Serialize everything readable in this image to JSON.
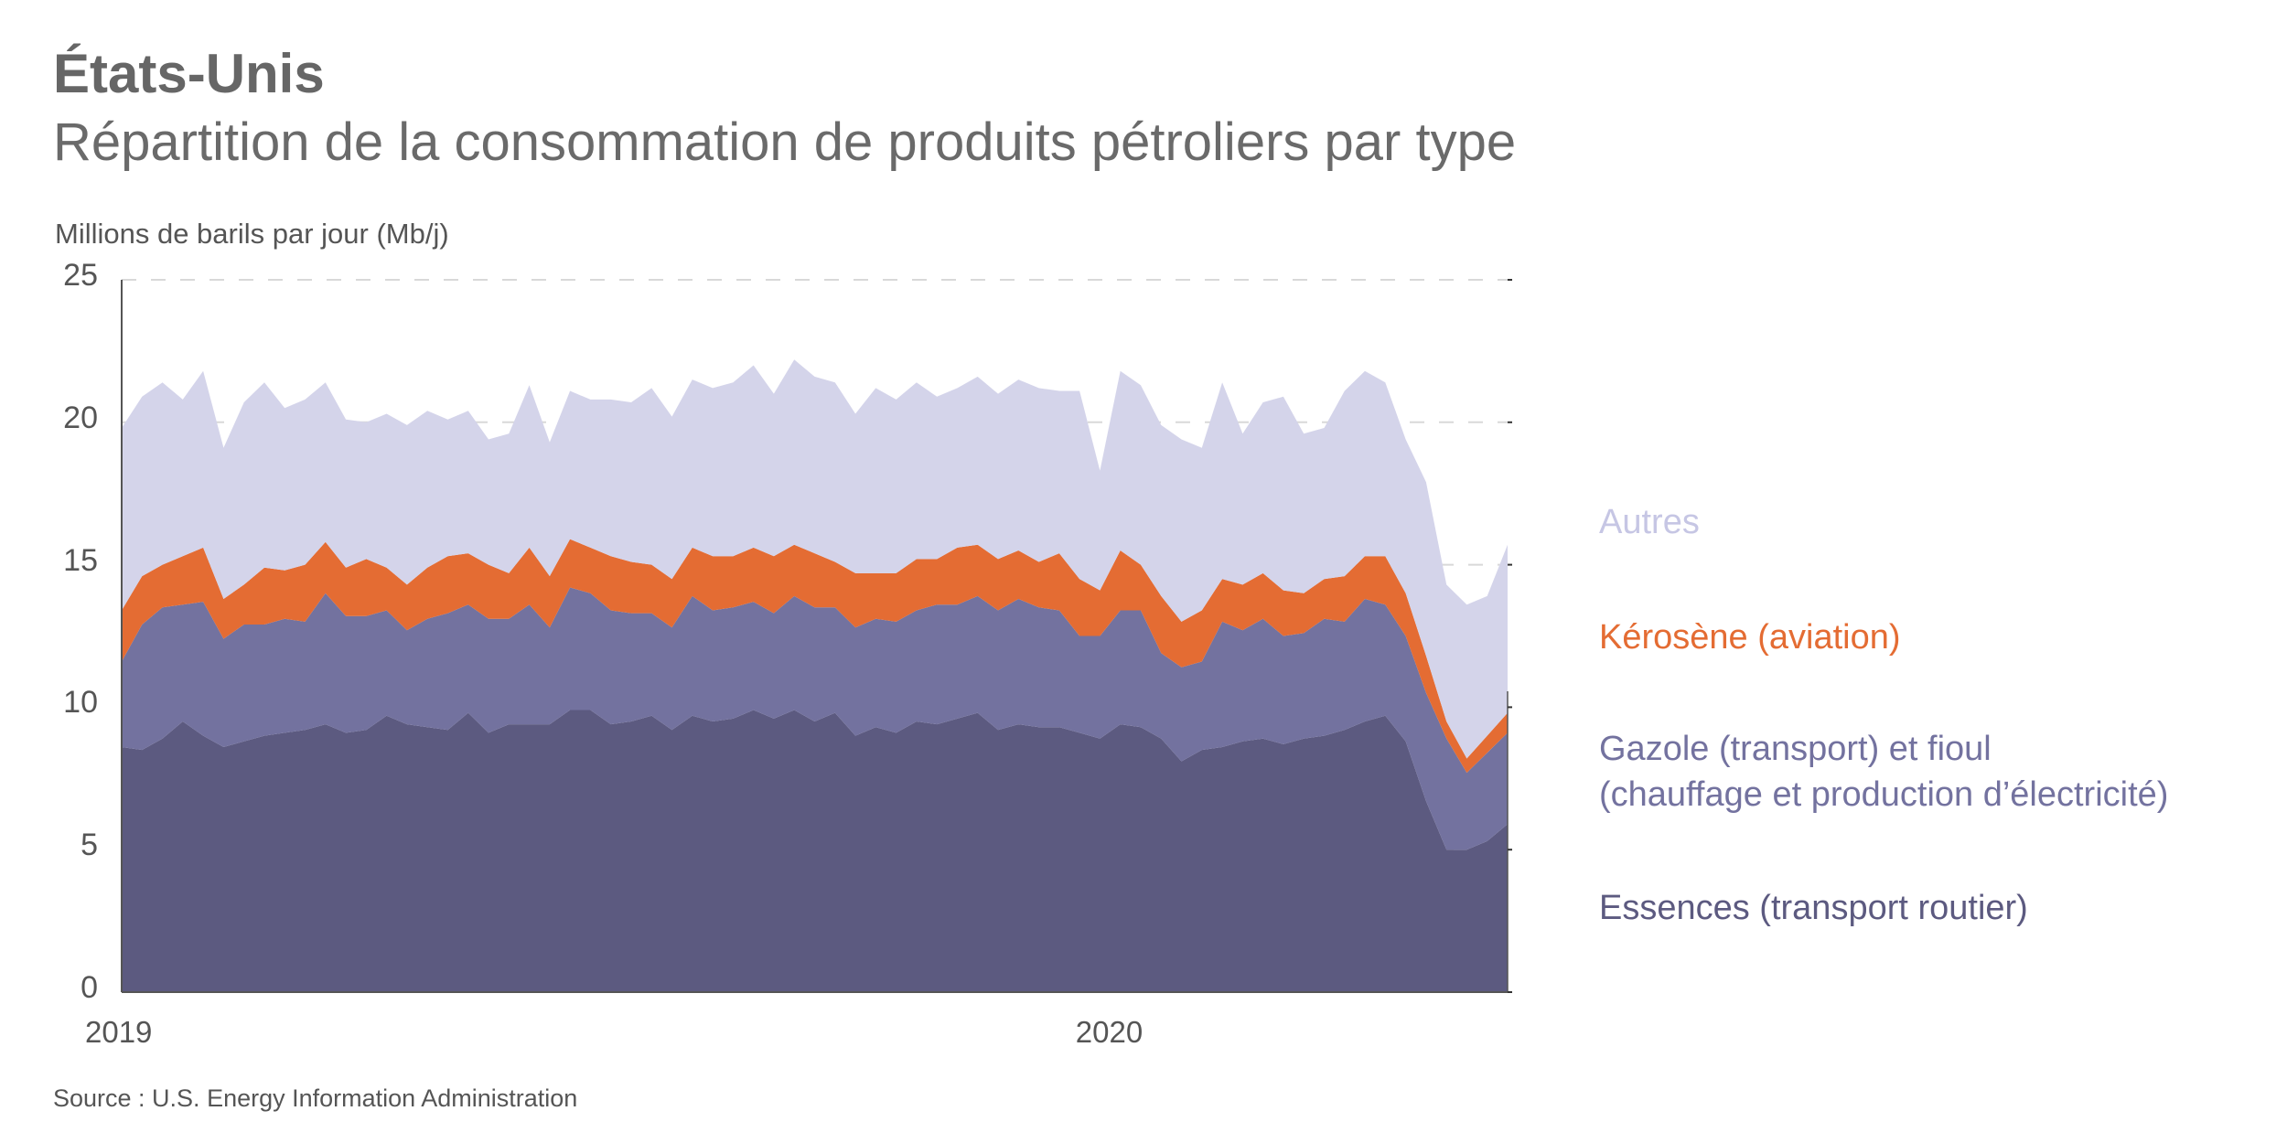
{
  "header": {
    "title": "États-Unis",
    "subtitle": "Répartition de la consommation de produits pétroliers par type"
  },
  "source": "Source : U.S. Energy Information Administration",
  "chart_data": {
    "type": "area",
    "stacked": true,
    "title": "Répartition de la consommation de produits pétroliers par type",
    "ylabel": "Millions de barils par jour (Mb/j)",
    "xlabel": "",
    "ylim": [
      0,
      25
    ],
    "yticks": [
      "0",
      "5",
      "10",
      "15",
      "20",
      "25"
    ],
    "xticks": [
      {
        "label": "2019",
        "x": 0
      },
      {
        "label": "2020",
        "x": 48.6
      }
    ],
    "xlim": [
      0,
      68
    ],
    "x_unit": "week index from start of 2019",
    "grid": "horizontal dashed",
    "legend_placement": "right",
    "series": [
      {
        "name": "Essences (transport routier)",
        "color": "#5c5a80",
        "values": [
          8.6,
          8.5,
          8.9,
          9.5,
          9.0,
          8.6,
          8.8,
          9.0,
          9.1,
          9.2,
          9.4,
          9.1,
          9.2,
          9.7,
          9.4,
          9.3,
          9.2,
          9.8,
          9.1,
          9.4,
          9.4,
          9.4,
          9.9,
          9.9,
          9.4,
          9.5,
          9.7,
          9.2,
          9.7,
          9.5,
          9.6,
          9.9,
          9.6,
          9.9,
          9.5,
          9.8,
          9.0,
          9.3,
          9.1,
          9.5,
          9.4,
          9.6,
          9.8,
          9.2,
          9.4,
          9.3,
          9.3,
          9.1,
          8.9,
          9.4,
          9.3,
          8.9,
          8.1,
          8.5,
          8.6,
          8.8,
          8.9,
          8.7,
          8.9,
          9.0,
          9.2,
          9.5,
          9.7,
          8.8,
          6.7,
          5.0,
          5.0,
          5.3,
          5.9
        ]
      },
      {
        "name": "Gazole (transport) et fioul\n(chauffage et production d’électricité)",
        "name_line1": "Gazole (transport) et fioul",
        "name_line2": "(chauffage et production d’électricité)",
        "color": "#73729f",
        "values": [
          3.0,
          4.4,
          4.6,
          4.1,
          4.7,
          3.8,
          4.1,
          3.9,
          4.0,
          3.8,
          4.6,
          4.1,
          4.0,
          3.7,
          3.3,
          3.8,
          4.1,
          3.8,
          4.0,
          3.7,
          4.2,
          3.4,
          4.3,
          4.1,
          4.0,
          3.8,
          3.6,
          3.6,
          4.2,
          3.9,
          3.9,
          3.8,
          3.7,
          4.0,
          4.0,
          3.7,
          3.8,
          3.8,
          3.9,
          3.9,
          4.2,
          4.0,
          4.1,
          4.2,
          4.4,
          4.2,
          4.1,
          3.4,
          3.6,
          4.0,
          4.1,
          3.0,
          3.3,
          3.1,
          4.4,
          3.9,
          4.2,
          3.8,
          3.7,
          4.1,
          3.8,
          4.3,
          3.9,
          3.7,
          3.8,
          3.9,
          2.7,
          3.1,
          3.2
        ]
      },
      {
        "name": "Kérosène (aviation)",
        "color": "#e46c33",
        "values": [
          1.8,
          1.7,
          1.5,
          1.7,
          1.9,
          1.4,
          1.4,
          2.0,
          1.7,
          2.0,
          1.8,
          1.7,
          2.0,
          1.5,
          1.6,
          1.8,
          2.0,
          1.8,
          1.9,
          1.6,
          2.0,
          1.8,
          1.7,
          1.6,
          1.9,
          1.8,
          1.7,
          1.7,
          1.7,
          1.9,
          1.8,
          1.9,
          2.0,
          1.8,
          1.9,
          1.6,
          1.9,
          1.6,
          1.7,
          1.8,
          1.6,
          2.0,
          1.8,
          1.8,
          1.7,
          1.6,
          2.0,
          2.0,
          1.6,
          2.1,
          1.6,
          2.0,
          1.6,
          1.8,
          1.5,
          1.6,
          1.6,
          1.6,
          1.4,
          1.4,
          1.6,
          1.5,
          1.7,
          1.5,
          1.3,
          0.6,
          0.5,
          0.6,
          0.7
        ]
      },
      {
        "name": "Autres",
        "color": "#d4d4ea",
        "legend_color": "#c6c6e4",
        "values": [
          6.4,
          6.3,
          6.4,
          5.5,
          6.2,
          5.3,
          6.4,
          6.5,
          5.7,
          5.8,
          5.6,
          5.2,
          4.8,
          5.4,
          5.6,
          5.5,
          4.8,
          5.0,
          4.4,
          4.9,
          5.7,
          4.7,
          5.2,
          5.2,
          5.5,
          5.6,
          6.2,
          5.7,
          5.9,
          5.9,
          6.1,
          6.4,
          5.7,
          6.5,
          6.2,
          6.3,
          5.6,
          6.5,
          6.1,
          6.2,
          5.7,
          5.6,
          5.9,
          5.8,
          6.0,
          6.1,
          5.7,
          6.6,
          4.2,
          6.3,
          6.3,
          6.0,
          6.4,
          5.7,
          6.9,
          5.3,
          6.0,
          6.8,
          5.6,
          5.3,
          6.5,
          6.5,
          6.1,
          5.4,
          6.1,
          4.8,
          5.4,
          4.9,
          5.9
        ]
      }
    ]
  }
}
